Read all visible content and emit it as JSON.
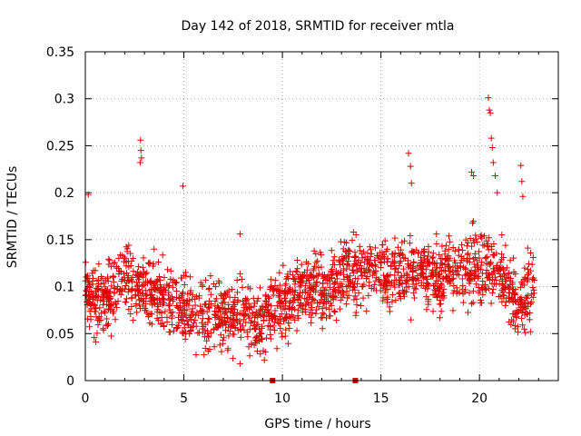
{
  "chart_data": {
    "type": "scatter",
    "title": "Day 142 of 2018, SRMTID for receiver mtla",
    "xlabel": "GPS time / hours",
    "ylabel": "SRMTID / TECUs",
    "xlim": [
      0,
      24
    ],
    "ylim": [
      0,
      0.35
    ],
    "grid": true,
    "marker": "+",
    "color": "#e00000",
    "xticks": [
      0,
      5,
      10,
      15,
      20
    ],
    "yticks": [
      0,
      0.05,
      0.1,
      0.15,
      0.2,
      0.25,
      0.3,
      0.35
    ],
    "xtick_labels": [
      "0",
      "5",
      "10",
      "15",
      "20"
    ],
    "ytick_labels": [
      "0",
      "0.05",
      "0.1",
      "0.15",
      "0.2",
      "0.25",
      "0.3",
      "0.35"
    ],
    "trend_anchors": [
      [
        0.0,
        0.095
      ],
      [
        1.0,
        0.085
      ],
      [
        2.0,
        0.11
      ],
      [
        3.0,
        0.095
      ],
      [
        4.0,
        0.09
      ],
      [
        5.0,
        0.075
      ],
      [
        6.0,
        0.065
      ],
      [
        7.0,
        0.07
      ],
      [
        8.0,
        0.07
      ],
      [
        9.0,
        0.065
      ],
      [
        10.0,
        0.08
      ],
      [
        11.0,
        0.095
      ],
      [
        12.0,
        0.095
      ],
      [
        13.0,
        0.11
      ],
      [
        14.0,
        0.12
      ],
      [
        15.0,
        0.115
      ],
      [
        16.0,
        0.115
      ],
      [
        17.0,
        0.115
      ],
      [
        18.0,
        0.115
      ],
      [
        19.0,
        0.12
      ],
      [
        20.0,
        0.12
      ],
      [
        21.0,
        0.12
      ],
      [
        22.0,
        0.075
      ],
      [
        22.8,
        0.11
      ]
    ],
    "spread": 0.045,
    "density_per_hour": 85,
    "outliers": [
      {
        "x": 2.8,
        "y": 0.256
      },
      {
        "x": 2.82,
        "y": 0.245
      },
      {
        "x": 2.85,
        "y": 0.237
      },
      {
        "x": 2.78,
        "y": 0.232
      },
      {
        "x": 4.95,
        "y": 0.207
      },
      {
        "x": 0.15,
        "y": 0.198
      },
      {
        "x": 16.4,
        "y": 0.242
      },
      {
        "x": 16.5,
        "y": 0.228
      },
      {
        "x": 16.55,
        "y": 0.21
      },
      {
        "x": 19.6,
        "y": 0.222
      },
      {
        "x": 19.7,
        "y": 0.218
      },
      {
        "x": 20.45,
        "y": 0.301
      },
      {
        "x": 20.5,
        "y": 0.288
      },
      {
        "x": 20.55,
        "y": 0.285
      },
      {
        "x": 20.6,
        "y": 0.258
      },
      {
        "x": 20.65,
        "y": 0.248
      },
      {
        "x": 20.7,
        "y": 0.232
      },
      {
        "x": 20.8,
        "y": 0.218
      },
      {
        "x": 20.9,
        "y": 0.2
      },
      {
        "x": 22.1,
        "y": 0.229
      },
      {
        "x": 22.15,
        "y": 0.212
      },
      {
        "x": 22.2,
        "y": 0.196
      },
      {
        "x": 7.85,
        "y": 0.156
      },
      {
        "x": 7.85,
        "y": 0.018
      }
    ],
    "zero_markers": [
      {
        "x": 9.5,
        "y": 0.0
      },
      {
        "x": 13.7,
        "y": 0.0
      }
    ]
  }
}
